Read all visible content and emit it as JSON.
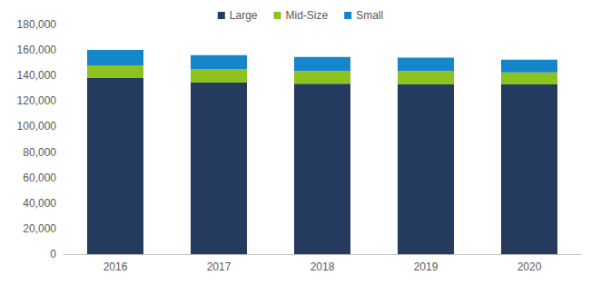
{
  "chart_data": {
    "type": "bar",
    "categories": [
      "2016",
      "2017",
      "2018",
      "2019",
      "2020"
    ],
    "series": [
      {
        "name": "Large",
        "color": "#243a5e",
        "values": [
          138000,
          134500,
          133500,
          133000,
          133000
        ]
      },
      {
        "name": "Mid-Size",
        "color": "#8dc21f",
        "values": [
          10000,
          10500,
          10000,
          10500,
          9500
        ]
      },
      {
        "name": "Small",
        "color": "#1586c9",
        "values": [
          12000,
          11000,
          11000,
          10500,
          10000
        ]
      }
    ],
    "stacked": true,
    "legend": "top",
    "grid": false,
    "ylim": [
      0,
      180000
    ],
    "yticks": [
      0,
      {
        "value": 20000,
        "label": "20,000"
      },
      {
        "value": 40000,
        "label": "40,000"
      },
      {
        "value": 60000,
        "label": "60,000"
      },
      {
        "value": 80000,
        "label": "80,000"
      },
      {
        "value": 100000,
        "label": "100,000"
      },
      {
        "value": 120000,
        "label": "120,000"
      },
      {
        "value": 140000,
        "label": "140,000"
      },
      {
        "value": 160000,
        "label": "160,000"
      },
      {
        "value": 180000,
        "label": "180,000"
      }
    ]
  }
}
